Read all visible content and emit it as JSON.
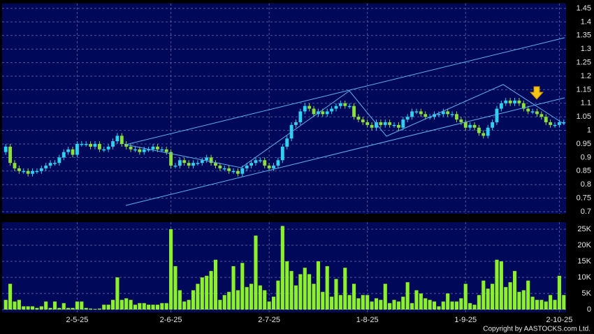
{
  "chart_data": {
    "type": "candlestick",
    "categories": [
      null,
      null,
      null,
      null,
      null,
      null,
      null,
      null,
      null,
      null,
      null,
      null,
      null,
      null,
      null,
      null,
      "2-5-25",
      null,
      null,
      null,
      null,
      null,
      null,
      null,
      null,
      null,
      null,
      null,
      null,
      null,
      null,
      null,
      null,
      null,
      null,
      null,
      null,
      "2-6-25",
      null,
      null,
      null,
      null,
      null,
      null,
      null,
      null,
      null,
      null,
      null,
      null,
      null,
      null,
      null,
      null,
      null,
      null,
      null,
      null,
      null,
      "2-7-25",
      null,
      null,
      null,
      null,
      null,
      null,
      null,
      null,
      null,
      null,
      null,
      null,
      null,
      null,
      null,
      null,
      null,
      null,
      null,
      null,
      null,
      "1-8-25",
      null,
      null,
      null,
      null,
      null,
      null,
      null,
      null,
      null,
      null,
      null,
      null,
      null,
      null,
      null,
      null,
      null,
      null,
      null,
      null,
      null,
      "1-9-25",
      null,
      null,
      null,
      null,
      null,
      null,
      null,
      null,
      null,
      null,
      null,
      null,
      null,
      null,
      null,
      null,
      null,
      null,
      null,
      null,
      "2-10-25",
      null
    ],
    "open": [
      0.92,
      0.94,
      0.88,
      0.86,
      0.85,
      0.85,
      0.84,
      0.85,
      0.85,
      0.86,
      0.87,
      0.88,
      0.88,
      0.9,
      0.92,
      0.93,
      0.91,
      0.95,
      0.95,
      0.95,
      0.94,
      0.95,
      0.93,
      0.93,
      0.94,
      0.96,
      0.98,
      0.95,
      0.94,
      0.93,
      0.93,
      0.92,
      0.93,
      0.93,
      0.94,
      0.93,
      0.93,
      0.92,
      0.87,
      0.87,
      0.89,
      0.88,
      0.87,
      0.88,
      0.88,
      0.89,
      0.9,
      0.88,
      0.87,
      0.86,
      0.86,
      0.85,
      0.85,
      0.84,
      0.86,
      0.87,
      0.88,
      0.89,
      0.89,
      0.87,
      0.86,
      0.87,
      0.89,
      0.94,
      0.97,
      1.02,
      1.03,
      1.07,
      1.09,
      1.08,
      1.06,
      1.07,
      1.06,
      1.07,
      1.08,
      1.09,
      1.1,
      1.09,
      1.09,
      1.05,
      1.04,
      1.03,
      1.02,
      1.01,
      1.03,
      1.02,
      1.03,
      1.02,
      1.02,
      1.01,
      1.04,
      1.05,
      1.07,
      1.07,
      1.06,
      1.05,
      1.05,
      1.06,
      1.06,
      1.07,
      1.06,
      1.06,
      1.04,
      1.03,
      1.01,
      1.02,
      1.01,
      0.99,
      0.98,
      1.01,
      1.03,
      1.08,
      1.1,
      1.11,
      1.1,
      1.11,
      1.1,
      1.08,
      1.07,
      1.07,
      1.06,
      1.05,
      1.03,
      1.02,
      1.02,
      1.03
    ],
    "high": [
      0.95,
      0.95,
      0.89,
      0.87,
      0.86,
      0.86,
      0.86,
      0.86,
      0.87,
      0.88,
      0.89,
      0.89,
      0.91,
      0.93,
      0.94,
      0.94,
      0.96,
      0.96,
      0.96,
      0.96,
      0.96,
      0.96,
      0.94,
      0.95,
      0.97,
      0.99,
      0.99,
      0.96,
      0.95,
      0.94,
      0.94,
      0.94,
      0.94,
      0.95,
      0.95,
      0.94,
      0.94,
      0.93,
      0.88,
      0.9,
      0.9,
      0.89,
      0.89,
      0.89,
      0.9,
      0.91,
      0.91,
      0.89,
      0.88,
      0.87,
      0.87,
      0.86,
      0.86,
      0.87,
      0.88,
      0.89,
      0.9,
      0.9,
      0.9,
      0.88,
      0.88,
      0.9,
      0.95,
      0.98,
      1.03,
      1.04,
      1.08,
      1.1,
      1.1,
      1.09,
      1.08,
      1.08,
      1.08,
      1.09,
      1.1,
      1.11,
      1.11,
      1.1,
      1.1,
      1.06,
      1.05,
      1.04,
      1.03,
      1.04,
      1.04,
      1.04,
      1.04,
      1.03,
      1.03,
      1.05,
      1.06,
      1.08,
      1.08,
      1.08,
      1.07,
      1.06,
      1.07,
      1.07,
      1.08,
      1.08,
      1.07,
      1.07,
      1.05,
      1.04,
      1.03,
      1.03,
      1.02,
      1.0,
      1.02,
      1.04,
      1.09,
      1.11,
      1.12,
      1.12,
      1.12,
      1.12,
      1.11,
      1.09,
      1.08,
      1.08,
      1.07,
      1.06,
      1.04,
      1.03,
      1.04,
      1.04
    ],
    "low": [
      0.91,
      0.87,
      0.85,
      0.84,
      0.84,
      0.83,
      0.83,
      0.84,
      0.84,
      0.85,
      0.86,
      0.87,
      0.87,
      0.89,
      0.91,
      0.9,
      0.9,
      0.94,
      0.94,
      0.93,
      0.93,
      0.92,
      0.92,
      0.92,
      0.93,
      0.95,
      0.94,
      0.93,
      0.92,
      0.92,
      0.91,
      0.91,
      0.92,
      0.92,
      0.92,
      0.92,
      0.91,
      0.86,
      0.86,
      0.86,
      0.87,
      0.86,
      0.86,
      0.87,
      0.87,
      0.88,
      0.87,
      0.86,
      0.85,
      0.85,
      0.84,
      0.84,
      0.83,
      0.83,
      0.85,
      0.86,
      0.87,
      0.88,
      0.86,
      0.85,
      0.85,
      0.86,
      0.88,
      0.93,
      0.96,
      1.01,
      1.02,
      1.06,
      1.07,
      1.05,
      1.05,
      1.05,
      1.05,
      1.06,
      1.07,
      1.08,
      1.08,
      1.08,
      1.04,
      1.03,
      1.02,
      1.01,
      1.0,
      1.0,
      1.01,
      1.01,
      1.01,
      1.01,
      1.0,
      1.0,
      1.03,
      1.04,
      1.06,
      1.05,
      1.04,
      1.04,
      1.04,
      1.05,
      1.05,
      1.05,
      1.05,
      1.03,
      1.02,
      1.0,
      1.0,
      1.0,
      0.98,
      0.97,
      0.97,
      1.0,
      1.02,
      1.07,
      1.09,
      1.09,
      1.09,
      1.09,
      1.07,
      1.06,
      1.06,
      1.05,
      1.04,
      1.02,
      1.01,
      1.01,
      1.01,
      1.02
    ],
    "close": [
      0.94,
      0.88,
      0.86,
      0.85,
      0.85,
      0.84,
      0.85,
      0.85,
      0.86,
      0.87,
      0.88,
      0.88,
      0.9,
      0.92,
      0.93,
      0.91,
      0.95,
      0.95,
      0.95,
      0.94,
      0.95,
      0.93,
      0.93,
      0.94,
      0.96,
      0.98,
      0.95,
      0.94,
      0.93,
      0.93,
      0.92,
      0.93,
      0.93,
      0.94,
      0.93,
      0.93,
      0.92,
      0.87,
      0.87,
      0.89,
      0.88,
      0.87,
      0.88,
      0.88,
      0.89,
      0.9,
      0.88,
      0.87,
      0.86,
      0.86,
      0.85,
      0.85,
      0.84,
      0.86,
      0.87,
      0.88,
      0.89,
      0.89,
      0.87,
      0.86,
      0.87,
      0.89,
      0.94,
      0.97,
      1.02,
      1.03,
      1.07,
      1.09,
      1.08,
      1.06,
      1.07,
      1.06,
      1.07,
      1.08,
      1.09,
      1.1,
      1.09,
      1.09,
      1.05,
      1.04,
      1.03,
      1.02,
      1.01,
      1.03,
      1.02,
      1.03,
      1.02,
      1.02,
      1.01,
      1.04,
      1.05,
      1.07,
      1.07,
      1.06,
      1.05,
      1.05,
      1.06,
      1.06,
      1.07,
      1.06,
      1.06,
      1.04,
      1.03,
      1.01,
      1.02,
      1.01,
      0.99,
      0.98,
      1.01,
      1.03,
      1.08,
      1.1,
      1.11,
      1.1,
      1.11,
      1.1,
      1.08,
      1.07,
      1.07,
      1.06,
      1.05,
      1.03,
      1.02,
      1.02,
      1.03,
      1.03
    ],
    "volume": [
      3000,
      8000,
      2500,
      3000,
      1000,
      1000,
      1000,
      500,
      1000,
      2500,
      500,
      2500,
      500,
      2000,
      500,
      500,
      2500,
      2500,
      500,
      300,
      200,
      300,
      1500,
      1500,
      3000,
      10000,
      3000,
      3500,
      3000,
      1500,
      2000,
      2000,
      1500,
      1500,
      1500,
      2000,
      2000,
      25000,
      13500,
      6000,
      2500,
      3000,
      6000,
      8000,
      10000,
      10500,
      12000,
      15500,
      3000,
      4500,
      5500,
      13500,
      6000,
      14500,
      7000,
      8000,
      23000,
      7500,
      6000,
      2500,
      4000,
      9000,
      26000,
      15000,
      12000,
      7500,
      11000,
      13000,
      11000,
      8000,
      15000,
      5500,
      13500,
      4000,
      9500,
      4500,
      13000,
      4500,
      8000,
      3500,
      4500,
      4500,
      2500,
      3500,
      3000,
      8000,
      2000,
      3000,
      2500,
      4000,
      8500,
      2000,
      6000,
      5000,
      3500,
      3000,
      2500,
      1000,
      2500,
      5000,
      2500,
      2500,
      3500,
      8000,
      2000,
      1500,
      4500,
      9000,
      6500,
      8000,
      15500,
      15000,
      7000,
      8500,
      12000,
      5500,
      6000,
      9000,
      4000,
      3000,
      3000,
      2500,
      4500,
      3000,
      10500,
      4500
    ],
    "up_color": "#2fd0f0",
    "down_color": "#8be03a",
    "volume_color": "#8cf02a",
    "ylim": [
      0.7,
      1.45
    ],
    "yticks": [
      0.7,
      0.75,
      0.8,
      0.85,
      0.9,
      0.95,
      1,
      1.05,
      1.1,
      1.15,
      1.2,
      1.25,
      1.3,
      1.35,
      1.4,
      1.45
    ],
    "volume_ylim": [
      0,
      25000
    ],
    "volume_yticks": [
      0,
      {
        "value": 5000,
        "label": "5K"
      },
      {
        "value": 10000,
        "label": "10K"
      },
      {
        "value": 15000,
        "label": "15K"
      },
      {
        "value": 20000,
        "label": "20K"
      },
      {
        "value": 25000,
        "label": "25K"
      }
    ],
    "grid": true,
    "copyright": "Copyright by AASTOCKS.com Ltd."
  }
}
